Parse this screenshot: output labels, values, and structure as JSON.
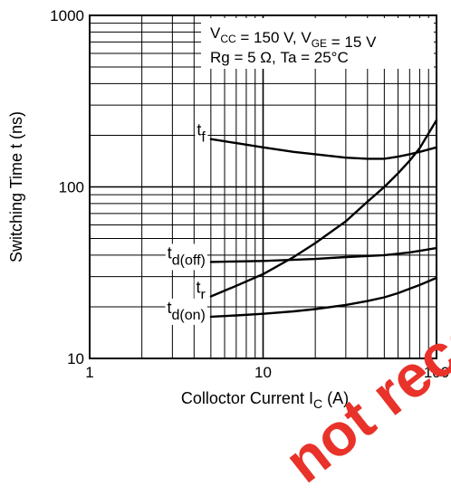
{
  "chart_data": {
    "type": "line",
    "xscale": "log",
    "yscale": "log",
    "xlim": [
      1,
      100
    ],
    "ylim": [
      10,
      1000
    ],
    "x_ticks": [
      "1",
      "10",
      "100"
    ],
    "y_ticks": [
      "10",
      "100",
      "1000"
    ],
    "xlabel": {
      "text": "Colloctor Current",
      "symbol": "I",
      "sub": "C",
      "unit": "(A)"
    },
    "ylabel": "Switching Time  t  (ns)",
    "conditions": [
      [
        {
          "t": "V"
        },
        {
          "t": "CC",
          "sub": true
        },
        {
          "t": " = 150 V, V"
        },
        {
          "t": "GE",
          "sub": true
        },
        {
          "t": " = 15 V"
        }
      ],
      [
        {
          "t": "Rg = 5 Ω, Ta = 25°C"
        }
      ]
    ],
    "series": [
      {
        "name": "t_f",
        "label": "t",
        "label_sub": "f",
        "x": [
          5,
          7,
          10,
          15,
          20,
          30,
          40,
          50,
          60,
          70,
          80,
          100
        ],
        "y": [
          190,
          180,
          170,
          160,
          155,
          148,
          146,
          146,
          150,
          155,
          160,
          170
        ]
      },
      {
        "name": "t_r",
        "label": "t",
        "label_sub": "r",
        "x": [
          5,
          7,
          10,
          15,
          20,
          30,
          40,
          50,
          60,
          70,
          80,
          100
        ],
        "y": [
          23,
          26.5,
          31,
          39,
          47,
          63,
          82,
          100,
          120,
          142,
          168,
          245
        ]
      },
      {
        "name": "t_d(off)",
        "label": "t",
        "label_sub": "d(off)",
        "x": [
          5,
          10,
          20,
          30,
          50,
          70,
          100
        ],
        "y": [
          36.5,
          37,
          38,
          39,
          40,
          41.5,
          44
        ]
      },
      {
        "name": "t_d(on)",
        "label": "t",
        "label_sub": "d(on)",
        "x": [
          5,
          7,
          10,
          15,
          20,
          30,
          40,
          50,
          60,
          70,
          80,
          100
        ],
        "y": [
          17.5,
          17.8,
          18.2,
          18.8,
          19.4,
          20.5,
          21.6,
          22.7,
          24,
          25.5,
          26.8,
          29.5
        ]
      }
    ],
    "grid": true,
    "legend": "none"
  },
  "watermark": {
    "text": "not recommended",
    "color": "#e8322a"
  }
}
